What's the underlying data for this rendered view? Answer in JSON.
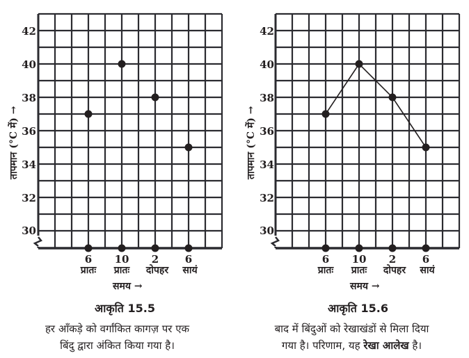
{
  "chart_data": [
    {
      "type": "scatter",
      "figure": "आकृति 15.5",
      "title": "आकृति 15.5",
      "xlabel": "समय →",
      "ylabel": "तापमान (°C में) →",
      "categories": [
        "6 प्रातः",
        "10 प्रातः",
        "2 दोपहर",
        "6 सायं"
      ],
      "values": [
        37,
        40,
        38,
        35
      ],
      "ylim": [
        29,
        43
      ],
      "yticks": [
        30,
        32,
        34,
        36,
        38,
        40,
        42
      ],
      "grid": true,
      "axis_break": true,
      "caption": "हर आँकड़े को वर्गांकित कागज़ पर एक बिंदु द्वारा अंकित किया गया है।"
    },
    {
      "type": "line",
      "figure": "आकृति 15.6",
      "title": "आकृति 15.6",
      "xlabel": "समय →",
      "ylabel": "तापमान (°C में) →",
      "categories": [
        "6 प्रातः",
        "10 प्रातः",
        "2 दोपहर",
        "6 सायं"
      ],
      "values": [
        37,
        40,
        38,
        35
      ],
      "ylim": [
        29,
        43
      ],
      "yticks": [
        30,
        32,
        34,
        36,
        38,
        40,
        42
      ],
      "grid": true,
      "axis_break": true,
      "caption": "बाद में बिंदुओं को रेखाखंडों से मिला दिया गया है। परिणाम, यह रेखा आलेख है।"
    }
  ],
  "left": {
    "ylabel": "तापमान (°C में) →",
    "yticks": [
      "42",
      "40",
      "38",
      "36",
      "34",
      "32",
      "30"
    ],
    "x_numbers": [
      "6",
      "10",
      "2",
      "6"
    ],
    "x_words": [
      "प्रातः",
      "प्रातः",
      "दोपहर",
      "सायं"
    ],
    "xlabel": "समय →",
    "figure_title": "आकृति 15.5",
    "caption_line1": "हर आँकड़े को वर्गांकित कागज़ पर एक",
    "caption_line2": "बिंदु द्वारा अंकित किया गया है।"
  },
  "right": {
    "ylabel": "तापमान (°C में) →",
    "yticks": [
      "42",
      "40",
      "38",
      "36",
      "34",
      "32",
      "30"
    ],
    "x_numbers": [
      "6",
      "10",
      "2",
      "6"
    ],
    "x_words": [
      "प्रातः",
      "प्रातः",
      "दोपहर",
      "सायं"
    ],
    "xlabel": "समय →",
    "figure_title": "आकृति 15.6",
    "caption_line1": "बाद में बिंदुओं को रेखाखंडों से मिला दिया",
    "caption_line2_a": "गया है। परिणाम, यह ",
    "caption_line2_b": "रेखा आलेख",
    "caption_line2_c": " है।"
  },
  "colors": {
    "ink": "#231f20",
    "grid": "#2b2b30",
    "background": "#ffffff"
  }
}
